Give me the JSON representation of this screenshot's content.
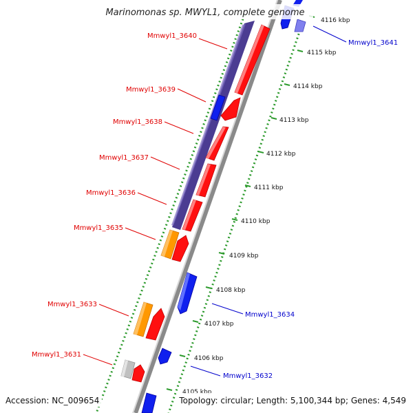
{
  "title": "Marinomonas sp. MWYL1, complete genome",
  "footer": {
    "accession": "Accession: NC_009654",
    "topology": "Topology: circular; Length: 5,100,344 bp; Genes: 4,549"
  },
  "colors": {
    "forward_label": "#e00000",
    "reverse_label": "#0000cc",
    "backbone": "#8a8a8a",
    "tick_ring": "#2c9a2c",
    "cds_forward": "#ff1010",
    "cds_reverse": "#1020ee",
    "cds_reverse_pale": "#8080ee",
    "operon": "#4b3c92",
    "gene_other": "#ff9800",
    "gene_grey": "#c0c0c0"
  },
  "ticks": [
    "4116 kbp",
    "4115 kbp",
    "4114 kbp",
    "4113 kbp",
    "4112 kbp",
    "4111 kbp",
    "4110 kbp",
    "4109 kbp",
    "4108 kbp",
    "4107 kbp",
    "4106 kbp",
    "4105 kbp"
  ],
  "genes": [
    {
      "name": "Mmwyl1_3641",
      "strand": "reverse"
    },
    {
      "name": "Mmwyl1_3640",
      "strand": "forward"
    },
    {
      "name": "Mmwyl1_3639",
      "strand": "forward"
    },
    {
      "name": "Mmwyl1_3638",
      "strand": "forward"
    },
    {
      "name": "Mmwyl1_3637",
      "strand": "forward"
    },
    {
      "name": "Mmwyl1_3636",
      "strand": "forward"
    },
    {
      "name": "Mmwyl1_3635",
      "strand": "forward"
    },
    {
      "name": "Mmwyl1_3634",
      "strand": "reverse"
    },
    {
      "name": "Mmwyl1_3633",
      "strand": "forward"
    },
    {
      "name": "Mmwyl1_3632",
      "strand": "reverse"
    },
    {
      "name": "Mmwyl1_3631",
      "strand": "forward"
    }
  ]
}
